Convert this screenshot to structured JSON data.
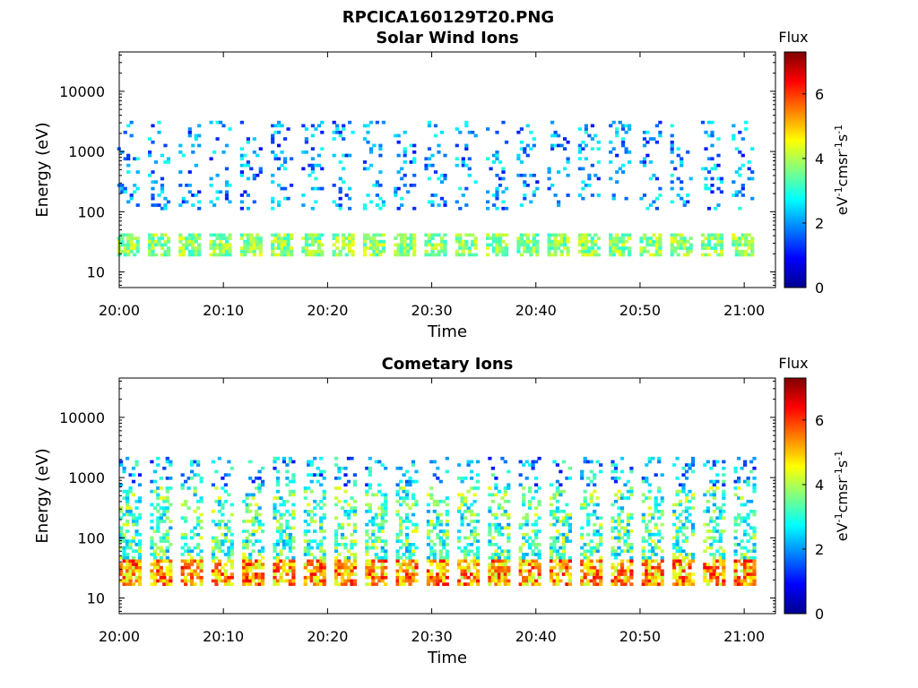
{
  "title": "RPCICA160129T20.PNG",
  "colors": {
    "axis": "#000000",
    "background": "#ffffff"
  },
  "chart_data": [
    {
      "type": "heatmap",
      "title": "Solar Wind Ions",
      "xlabel": "Time",
      "ylabel": "Energy (eV)",
      "y_scale": "log",
      "ylim": [
        5.5,
        45000
      ],
      "xlim": [
        "20:00",
        "21:03"
      ],
      "x_ticks": [
        "20:00",
        "20:10",
        "20:20",
        "20:30",
        "20:40",
        "20:50",
        "21:00"
      ],
      "y_ticks": [
        "10",
        "100",
        "1000",
        "10000"
      ],
      "colorbar": {
        "title": "Flux",
        "unit": "eV-1cm-2sr-1s-1",
        "range": [
          0,
          7.3
        ],
        "ticks": [
          "0",
          "2",
          "4",
          "6"
        ],
        "colormap": "jet"
      },
      "description_bands": {
        "low_energy_eV": [
          18,
          40
        ],
        "low_energy_flux": [
          3,
          4.5
        ],
        "high_energy_eV": [
          100,
          3000
        ],
        "high_energy_flux": [
          1,
          3
        ]
      }
    },
    {
      "type": "heatmap",
      "title": "Cometary Ions",
      "xlabel": "Time",
      "ylabel": "Energy (eV)",
      "y_scale": "log",
      "ylim": [
        5.5,
        45000
      ],
      "xlim": [
        "20:00",
        "21:03"
      ],
      "x_ticks": [
        "20:00",
        "20:10",
        "20:20",
        "20:30",
        "20:40",
        "20:50",
        "21:00"
      ],
      "y_ticks": [
        "10",
        "100",
        "1000",
        "10000"
      ],
      "colorbar": {
        "title": "Flux",
        "unit": "eV-1cm-2sr-1s-1",
        "range": [
          0,
          7.3
        ],
        "ticks": [
          "0",
          "2",
          "4",
          "6"
        ],
        "colormap": "jet"
      },
      "description_bands": {
        "low_energy_eV": [
          15,
          40
        ],
        "low_energy_flux": [
          4,
          6.5
        ],
        "high_energy_eV": [
          40,
          2000
        ],
        "high_energy_flux": [
          2,
          4.5
        ]
      }
    }
  ]
}
